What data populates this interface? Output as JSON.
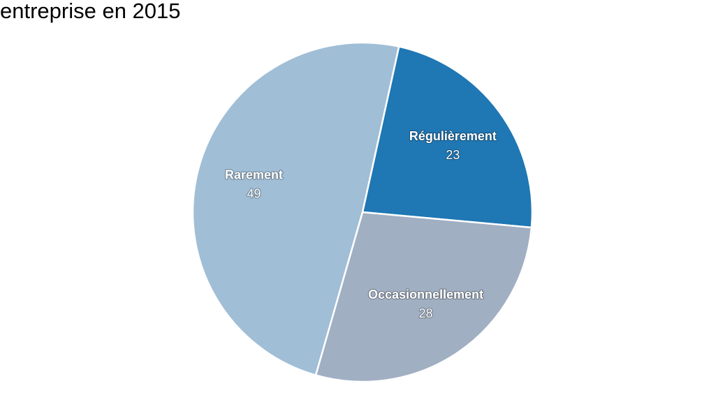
{
  "chart_data": {
    "type": "pie",
    "title": "entreprise en 2015",
    "categories": [
      "Régulièrement",
      "Occasionnellement",
      "Rarement"
    ],
    "values": [
      23,
      28,
      49
    ],
    "colors": [
      "#1f77b4",
      "#a0afc2",
      "#a0bed6"
    ]
  }
}
